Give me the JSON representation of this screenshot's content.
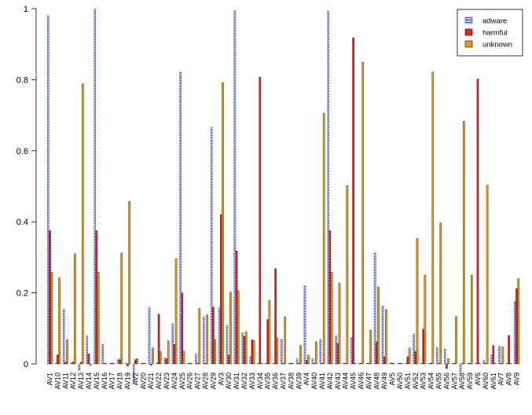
{
  "chart_data": {
    "type": "bar",
    "title": "",
    "xlabel": "",
    "ylabel": "",
    "ylim": [
      -0.07,
      1.0
    ],
    "yticks": [
      "0",
      "0.2",
      "0.4",
      "0.6",
      "0.8",
      "1"
    ],
    "ytick_values": [
      0,
      0.2,
      0.4,
      0.6,
      0.8,
      1
    ],
    "legend_position": "top-right",
    "categories": [
      "AV1",
      "AV10",
      "AV11",
      "AV12",
      "AV13",
      "AV14",
      "AV15",
      "AV16",
      "AV17",
      "AV18",
      "AV19",
      "AV2",
      "AV20",
      "AV21",
      "AV22",
      "AV23",
      "AV24",
      "AV25",
      "AV26",
      "AV27",
      "AV28",
      "AV29",
      "AV3",
      "AV30",
      "AV31",
      "AV32",
      "AV33",
      "AV34",
      "AV35",
      "AV36",
      "AV37",
      "AV38",
      "AV39",
      "AV4",
      "AV40",
      "AV41",
      "AV42",
      "AV43",
      "AV44",
      "AV45",
      "AV46",
      "AV47",
      "AV48",
      "AV49",
      "AV5",
      "AV50",
      "AV51",
      "AV52",
      "AV53",
      "AV54",
      "AV55",
      "AV56",
      "AV57",
      "AV58",
      "AV59",
      "AV6",
      "AV60",
      "AV61",
      "AV7",
      "AV8",
      "AV9"
    ],
    "series": [
      {
        "name": "adware",
        "color": "#3a45c8",
        "pattern": "hatched",
        "values": [
          0.98,
          0.002,
          0.155,
          0.005,
          -0.018,
          0.08,
          1.0,
          0.055,
          0.002,
          0.014,
          0.002,
          -0.05,
          0.002,
          0.16,
          0.003,
          0.018,
          0.113,
          0.822,
          0.002,
          0.028,
          0.133,
          0.665,
          0.16,
          0.108,
          0.995,
          0.088,
          0.02,
          0.002,
          0.002,
          0.002,
          0.069,
          0.002,
          0.015,
          0.22,
          0.015,
          0.069,
          0.993,
          0.08,
          0.002,
          0.075,
          0.002,
          0.002,
          0.313,
          0.163,
          0.005,
          0.002,
          0.002,
          0.085,
          0.002,
          0.002,
          0.046,
          0.042,
          0.002,
          -0.023,
          0.002,
          0.002,
          0.01,
          0.025,
          0.05,
          0.002,
          0.176
        ]
      },
      {
        "name": "harmful",
        "color": "#e0272b",
        "pattern": "solid",
        "values": [
          0.375,
          0.025,
          0.005,
          0.005,
          0.005,
          0.028,
          0.375,
          0.002,
          0.002,
          0.012,
          -0.006,
          0.012,
          0.002,
          -0.004,
          0.14,
          0.015,
          0.055,
          0.2,
          0.002,
          0.002,
          0.002,
          0.16,
          0.42,
          0.025,
          0.318,
          0.078,
          0.068,
          0.807,
          0.125,
          0.268,
          0.002,
          0.002,
          0.002,
          0.01,
          0.002,
          0.002,
          0.375,
          0.058,
          0.002,
          0.918,
          0.002,
          0.002,
          0.062,
          0.02,
          0.002,
          0.002,
          0.02,
          0.035,
          0.098,
          0.002,
          0.002,
          -0.013,
          0.002,
          0.002,
          0.002,
          0.802,
          0.002,
          0.052,
          0.002,
          0.08,
          0.212
        ]
      },
      {
        "name": "unknown",
        "color": "#e99e12",
        "pattern": "solid",
        "values": [
          0.258,
          0.242,
          0.068,
          0.31,
          0.788,
          -0.005,
          0.258,
          0.002,
          0.002,
          0.312,
          0.458,
          0.015,
          0.002,
          0.045,
          0.035,
          0.065,
          0.296,
          0.035,
          0.002,
          0.157,
          0.138,
          0.068,
          0.792,
          0.202,
          0.206,
          0.091,
          0.066,
          0.002,
          0.179,
          0.073,
          0.132,
          0.002,
          0.052,
          0.025,
          0.062,
          0.706,
          0.258,
          0.228,
          0.502,
          0.002,
          0.849,
          0.095,
          0.216,
          0.153,
          0.002,
          0.002,
          0.045,
          0.353,
          0.25,
          0.822,
          0.397,
          0.015,
          0.133,
          0.683,
          0.25,
          0.002,
          0.503,
          0.002,
          0.048,
          0.002,
          0.24
        ]
      }
    ]
  }
}
